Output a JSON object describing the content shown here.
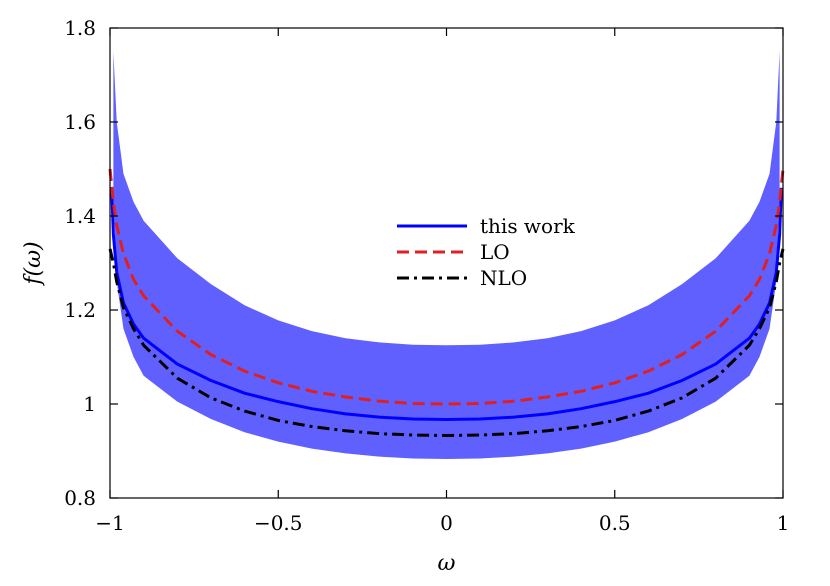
{
  "chart_data": {
    "type": "line",
    "xlabel": "ω",
    "ylabel": "f(ω)",
    "xlim": [
      -1.0,
      1.0
    ],
    "ylim": [
      0.8,
      1.8
    ],
    "x_ticks": [
      {
        "value": -1,
        "label": "−1"
      },
      {
        "value": -0.5,
        "label": "−0.5"
      },
      {
        "value": 0,
        "label": "0"
      },
      {
        "value": 0.5,
        "label": "0.5"
      },
      {
        "value": 1,
        "label": "1"
      }
    ],
    "y_ticks": [
      {
        "value": 0.8,
        "label": "0.8"
      },
      {
        "value": 1.0,
        "label": "1"
      },
      {
        "value": 1.2,
        "label": "1.2"
      },
      {
        "value": 1.4,
        "label": "1.4"
      },
      {
        "value": 1.6,
        "label": "1.6"
      },
      {
        "value": 1.8,
        "label": "1.8"
      }
    ],
    "band": {
      "color": "#6060ff",
      "x": [
        -0.99,
        -0.98,
        -0.96,
        -0.93,
        -0.9,
        -0.8,
        -0.7,
        -0.6,
        -0.5,
        -0.4,
        -0.3,
        -0.2,
        -0.1,
        0,
        0.1,
        0.2,
        0.3,
        0.4,
        0.5,
        0.6,
        0.7,
        0.8,
        0.9,
        0.93,
        0.96,
        0.98,
        0.99
      ],
      "upper": [
        1.75,
        1.6,
        1.49,
        1.43,
        1.39,
        1.31,
        1.255,
        1.21,
        1.178,
        1.155,
        1.14,
        1.131,
        1.126,
        1.125,
        1.126,
        1.131,
        1.14,
        1.155,
        1.178,
        1.21,
        1.255,
        1.31,
        1.39,
        1.43,
        1.49,
        1.6,
        1.75
      ],
      "lower": [
        1.45,
        1.26,
        1.16,
        1.1,
        1.06,
        1.005,
        0.968,
        0.94,
        0.92,
        0.905,
        0.895,
        0.888,
        0.884,
        0.883,
        0.884,
        0.888,
        0.895,
        0.905,
        0.92,
        0.94,
        0.968,
        1.005,
        1.06,
        1.1,
        1.16,
        1.26,
        1.45
      ]
    },
    "series": [
      {
        "name": "this work",
        "color": "#0000ff",
        "dash": "solid",
        "x": [
          -0.995,
          -0.99,
          -0.98,
          -0.96,
          -0.93,
          -0.9,
          -0.8,
          -0.7,
          -0.6,
          -0.5,
          -0.4,
          -0.3,
          -0.2,
          -0.1,
          0,
          0.1,
          0.2,
          0.3,
          0.4,
          0.5,
          0.6,
          0.7,
          0.8,
          0.9,
          0.93,
          0.96,
          0.98,
          0.99,
          0.995
        ],
        "values": [
          1.46,
          1.36,
          1.28,
          1.215,
          1.17,
          1.14,
          1.085,
          1.05,
          1.023,
          1.005,
          0.99,
          0.979,
          0.972,
          0.968,
          0.967,
          0.968,
          0.972,
          0.979,
          0.99,
          1.005,
          1.023,
          1.05,
          1.085,
          1.14,
          1.17,
          1.215,
          1.28,
          1.36,
          1.46
        ]
      },
      {
        "name": "LO",
        "color": "#e02020",
        "dash": "dashed",
        "x": [
          -1.0,
          -0.99,
          -0.98,
          -0.96,
          -0.93,
          -0.9,
          -0.8,
          -0.7,
          -0.6,
          -0.5,
          -0.4,
          -0.3,
          -0.2,
          -0.1,
          0,
          0.1,
          0.2,
          0.3,
          0.4,
          0.5,
          0.6,
          0.7,
          0.8,
          0.9,
          0.93,
          0.96,
          0.98,
          0.99,
          1.0
        ],
        "values": [
          1.5,
          1.43,
          1.38,
          1.32,
          1.265,
          1.23,
          1.155,
          1.105,
          1.07,
          1.045,
          1.027,
          1.015,
          1.006,
          1.001,
          1.0,
          1.001,
          1.006,
          1.015,
          1.027,
          1.045,
          1.07,
          1.105,
          1.155,
          1.23,
          1.265,
          1.32,
          1.38,
          1.43,
          1.5
        ]
      },
      {
        "name": "NLO",
        "color": "#000000",
        "dash": "dashdot",
        "x": [
          -1.0,
          -0.99,
          -0.98,
          -0.96,
          -0.93,
          -0.9,
          -0.8,
          -0.7,
          -0.6,
          -0.5,
          -0.4,
          -0.3,
          -0.2,
          -0.1,
          0,
          0.1,
          0.2,
          0.3,
          0.4,
          0.5,
          0.6,
          0.7,
          0.8,
          0.9,
          0.93,
          0.96,
          0.98,
          0.99,
          1.0
        ],
        "values": [
          1.33,
          1.3,
          1.26,
          1.205,
          1.16,
          1.125,
          1.055,
          1.013,
          0.985,
          0.965,
          0.952,
          0.943,
          0.937,
          0.934,
          0.933,
          0.934,
          0.937,
          0.943,
          0.952,
          0.965,
          0.985,
          1.013,
          1.055,
          1.125,
          1.16,
          1.205,
          1.26,
          1.3,
          1.33
        ]
      }
    ],
    "legend": {
      "placement": "center-right",
      "entries": [
        "this work",
        "LO",
        "NLO"
      ]
    },
    "grid": false
  }
}
